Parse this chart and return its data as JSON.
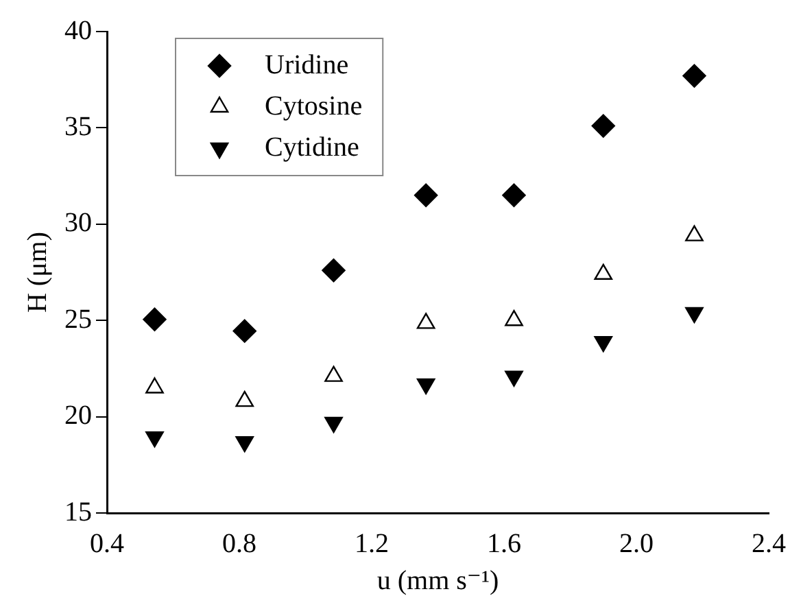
{
  "chart_data": {
    "type": "scatter",
    "xlabel": "u (mm s⁻¹)",
    "ylabel": "H (μm)",
    "xlim": [
      0.4,
      2.4
    ],
    "xticks": [
      {
        "value": 0.4,
        "label": "0.4"
      },
      {
        "value": 0.8,
        "label": "0.8"
      },
      {
        "value": 1.2,
        "label": "1.2"
      },
      {
        "value": 1.6,
        "label": "1.6"
      },
      {
        "value": 2,
        "label": "2.0"
      },
      {
        "value": 2.4,
        "label": "2.4"
      }
    ],
    "ylim": [
      15,
      40
    ],
    "yticks": [
      15,
      20,
      25,
      30,
      35,
      40
    ],
    "x": [
      0.544,
      0.816,
      1.085,
      1.364,
      1.63,
      1.9,
      2.175
    ],
    "grid": false,
    "legend": "top left",
    "series": [
      {
        "name": "Uridine",
        "color": "#000000",
        "marker": "diamond",
        "values": [
          25.05,
          24.45,
          27.6,
          31.5,
          31.5,
          35.1,
          37.7
        ]
      },
      {
        "name": "Cytosine",
        "color": "#000000",
        "marker": "triangle-open",
        "values": [
          21.5,
          20.8,
          22.1,
          24.85,
          25.0,
          27.4,
          29.4
        ]
      },
      {
        "name": "Cytidine",
        "color": "#000000",
        "marker": "triangle-down",
        "values": [
          18.95,
          18.7,
          19.7,
          21.7,
          22.1,
          23.9,
          25.4
        ]
      }
    ]
  }
}
